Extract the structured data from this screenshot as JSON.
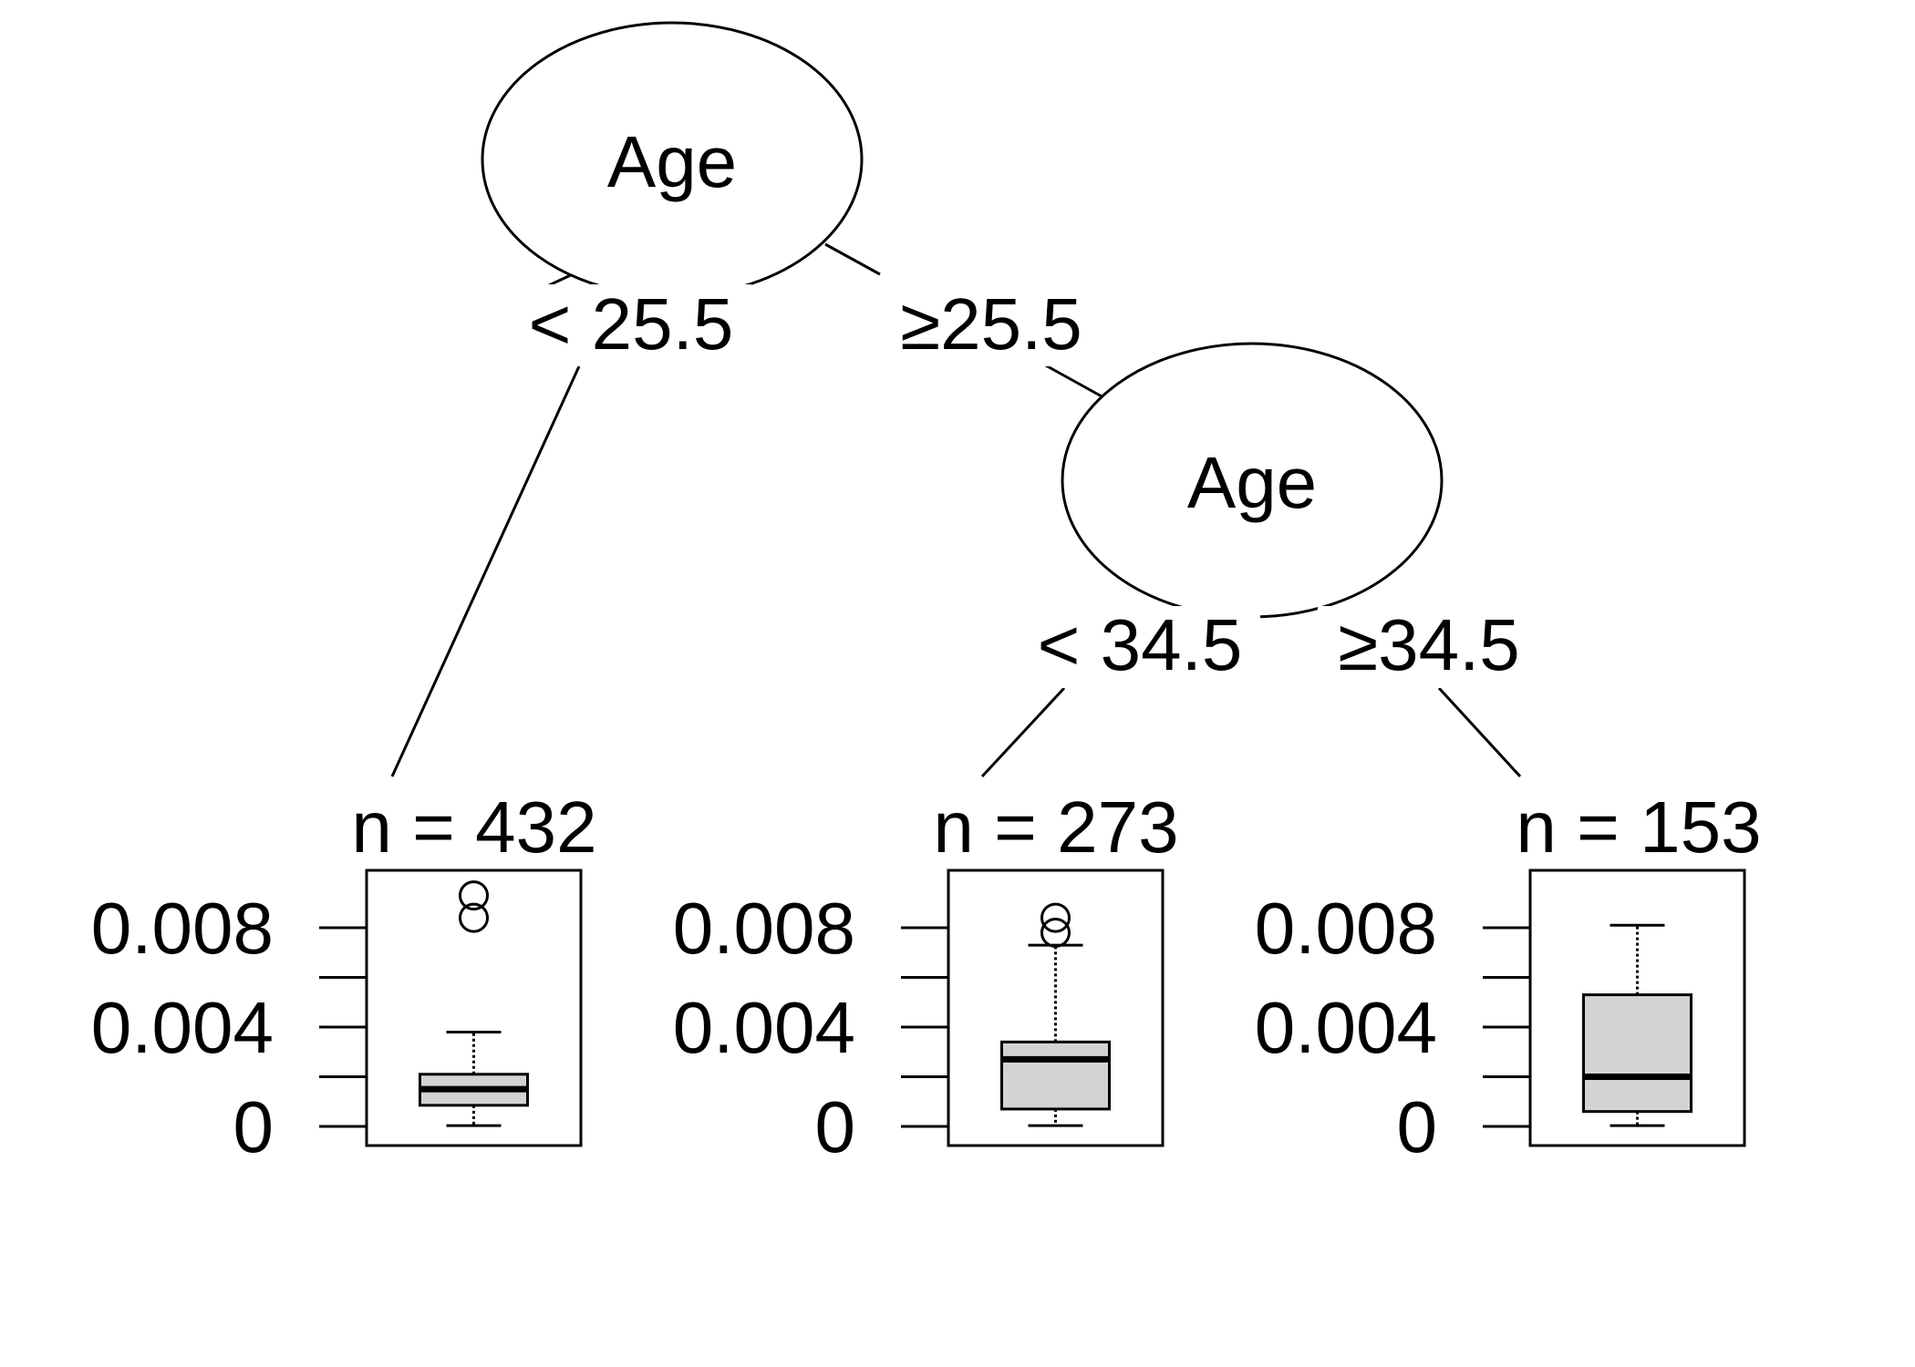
{
  "colors": {
    "background": "#ffffff",
    "stroke": "#000000",
    "box_fill": "#d3d3d3"
  },
  "tree": {
    "nodes": {
      "root": {
        "variable": "Age"
      },
      "inner": {
        "variable": "Age"
      }
    },
    "edges": {
      "root_left": "< 25.5",
      "root_right": "≥25.5",
      "inner_left": "< 34.5",
      "inner_right": "≥34.5"
    }
  },
  "chart_data": {
    "type": "boxplot",
    "title": "",
    "ylim": [
      0,
      0.0098
    ],
    "yticks": [
      0,
      0.002,
      0.004,
      0.006,
      0.008
    ],
    "ytick_labels": [
      "0",
      "",
      "0.004",
      "",
      "0.008"
    ],
    "leaves": [
      {
        "n_label": "n = 432",
        "whisker_low": 3e-05,
        "q1": 0.00085,
        "median": 0.0015,
        "q3": 0.0021,
        "whisker_high": 0.0038,
        "outliers": [
          0.0084,
          0.0093
        ]
      },
      {
        "n_label": "n = 273",
        "whisker_low": 3e-05,
        "q1": 0.0007,
        "median": 0.0027,
        "q3": 0.0034,
        "whisker_high": 0.0073,
        "outliers": [
          0.0078,
          0.0084
        ]
      },
      {
        "n_label": "n = 153",
        "whisker_low": 3e-05,
        "q1": 0.0006,
        "median": 0.002,
        "q3": 0.0053,
        "whisker_high": 0.0081,
        "outliers": []
      }
    ]
  }
}
